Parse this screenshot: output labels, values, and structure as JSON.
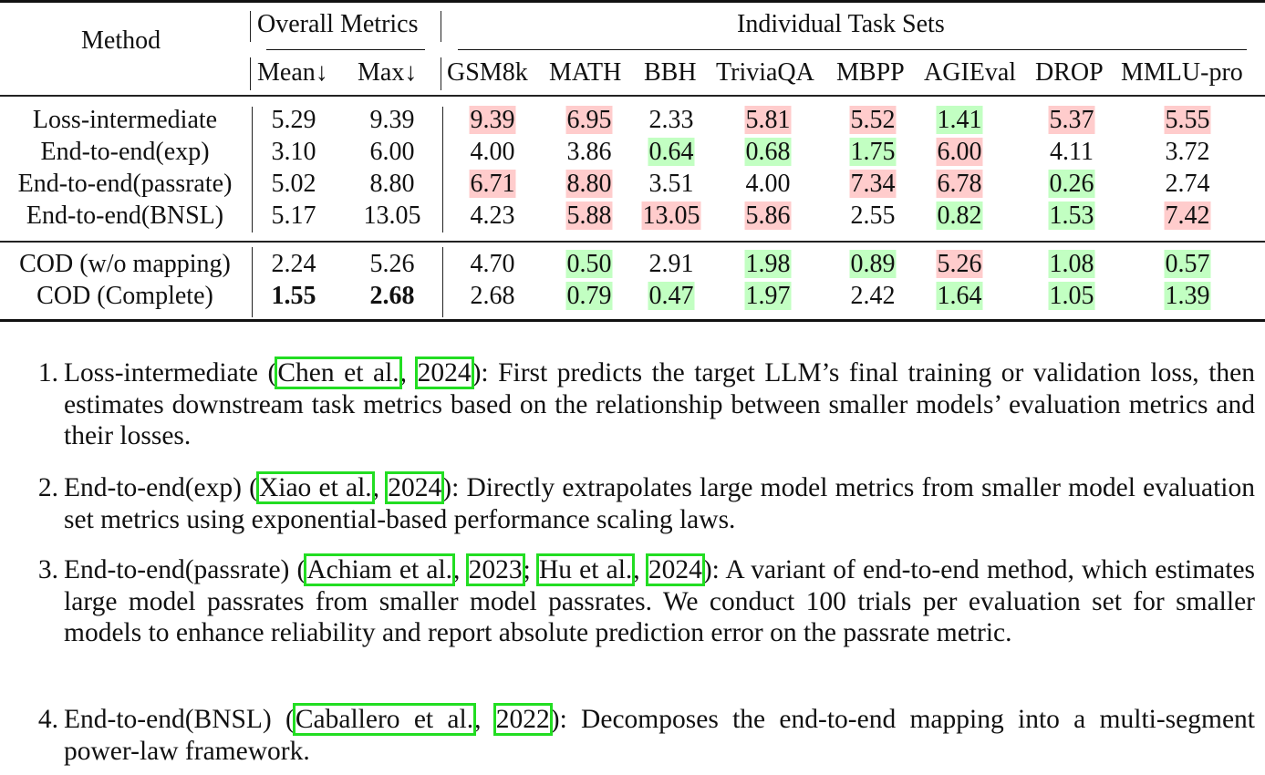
{
  "table": {
    "header": {
      "method": "Method",
      "overall_group": "Overall Metrics",
      "individual_group": "Individual Task Sets",
      "overall_cols": [
        "Mean↓",
        "Max↓"
      ],
      "task_cols": [
        "GSM8k",
        "MATH",
        "BBH",
        "TriviaQA",
        "MBPP",
        "AGIEval",
        "DROP",
        "MMLU-pro"
      ]
    },
    "highlight_colors": {
      "bad": "#ffcccc",
      "good": "#c2ffc2"
    },
    "rows": [
      {
        "method": "Loss-intermediate",
        "mean": "5.29",
        "max": "9.39",
        "tasks": [
          "9.39",
          "6.95",
          "2.33",
          "5.81",
          "5.52",
          "1.41",
          "5.37",
          "5.55"
        ],
        "marks": [
          "bad",
          "bad",
          "",
          "bad",
          "bad",
          "good",
          "bad",
          "bad"
        ]
      },
      {
        "method": "End-to-end(exp)",
        "mean": "3.10",
        "max": "6.00",
        "tasks": [
          "4.00",
          "3.86",
          "0.64",
          "0.68",
          "1.75",
          "6.00",
          "4.11",
          "3.72"
        ],
        "marks": [
          "",
          "",
          "good",
          "good",
          "good",
          "bad",
          "",
          ""
        ]
      },
      {
        "method": "End-to-end(passrate)",
        "mean": "5.02",
        "max": "8.80",
        "tasks": [
          "6.71",
          "8.80",
          "3.51",
          "4.00",
          "7.34",
          "6.78",
          "0.26",
          "2.74"
        ],
        "marks": [
          "bad",
          "bad",
          "",
          "",
          "bad",
          "bad",
          "good",
          ""
        ]
      },
      {
        "method": "End-to-end(BNSL)",
        "mean": "5.17",
        "max": "13.05",
        "tasks": [
          "4.23",
          "5.88",
          "13.05",
          "5.86",
          "2.55",
          "0.82",
          "1.53",
          "7.42"
        ],
        "marks": [
          "",
          "bad",
          "bad",
          "bad",
          "",
          "good",
          "good",
          "bad"
        ]
      },
      {
        "method": "COD (w/o mapping)",
        "mean": "2.24",
        "max": "5.26",
        "tasks": [
          "4.70",
          "0.50",
          "2.91",
          "1.98",
          "0.89",
          "5.26",
          "1.08",
          "0.57"
        ],
        "marks": [
          "",
          "good",
          "",
          "good",
          "good",
          "bad",
          "good",
          "good"
        ]
      },
      {
        "method": "COD (Complete)",
        "mean": "1.55",
        "max": "2.68",
        "bold_overall": true,
        "tasks": [
          "2.68",
          "0.79",
          "0.47",
          "1.97",
          "2.42",
          "1.64",
          "1.05",
          "1.39"
        ],
        "marks": [
          "",
          "good",
          "good",
          "good",
          "",
          "good",
          "good",
          "good"
        ]
      }
    ]
  },
  "list": [
    {
      "num": "1.",
      "name": "Loss-intermediate (",
      "cites": [
        [
          "Chen et al.",
          "2024"
        ]
      ],
      "rest": "): First predicts the target LLM’s final training or validation loss, then estimates downstream task metrics based on the relationship between smaller models’ evaluation metrics and their losses."
    },
    {
      "num": "2.",
      "name": "End-to-end(exp) (",
      "cites": [
        [
          "Xiao et al.",
          "2024"
        ]
      ],
      "rest": "): Directly extrapolates large model metrics from smaller model evaluation set metrics using exponential-based performance scaling laws."
    },
    {
      "num": "3.",
      "name": "End-to-end(passrate) (",
      "cites": [
        [
          "Achiam et al.",
          "2023"
        ],
        [
          "Hu et al.",
          "2024"
        ]
      ],
      "rest": "): A variant of end-to-end method, which estimates large model passrates from smaller model passrates. We conduct 100 trials per evaluation set for smaller models to enhance reliability and report absolute prediction error on the passrate metric."
    },
    {
      "num": "4.",
      "name": "End-to-end(BNSL) (",
      "cites": [
        [
          "Caballero et al.",
          "2022"
        ]
      ],
      "rest": "): Decomposes the end-to-end mapping into a multi-segment power-law framework."
    }
  ]
}
